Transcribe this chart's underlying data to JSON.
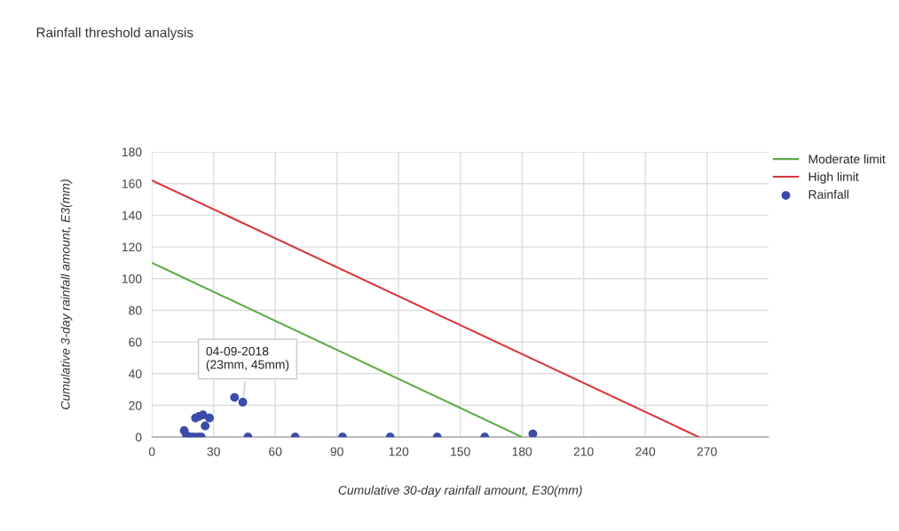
{
  "chart_data": {
    "type": "scatter",
    "title": "Rainfall threshold analysis",
    "xlabel": "Cumulative 30-day rainfall amount, E30(mm)",
    "ylabel": "Cumulative 3-day rainfall amount, E3(mm)",
    "xlim": [
      0,
      300
    ],
    "xticks": [
      0,
      30,
      60,
      90,
      120,
      150,
      180,
      210,
      240,
      270
    ],
    "ylim": [
      0,
      180
    ],
    "yticks": [
      0,
      20,
      40,
      60,
      80,
      100,
      120,
      140,
      160,
      180
    ],
    "grid": true,
    "legend": "top right",
    "series": [
      {
        "name": "Moderate limit",
        "type": "line",
        "color": "#5aac44",
        "x": [
          0,
          180
        ],
        "values": [
          110,
          0
        ]
      },
      {
        "name": "High limit",
        "type": "line",
        "color": "#d9363e",
        "x": [
          0,
          266
        ],
        "values": [
          162,
          0
        ]
      },
      {
        "name": "Rainfall",
        "marker": "circle",
        "color": "#3a4ba8",
        "x": [
          15.7,
          16.8,
          17.6,
          19,
          20.4,
          22.5,
          24,
          21.2,
          22.9,
          24.8,
          28,
          25.9,
          40.2,
          44.2,
          46.7,
          69.7,
          92.7,
          115.9,
          138.8,
          161.9,
          185.3
        ],
        "values": [
          4,
          1,
          0,
          0,
          0,
          0,
          0,
          12,
          13,
          14,
          12,
          7,
          25,
          22,
          0,
          0,
          0,
          0,
          0,
          0,
          2
        ]
      }
    ],
    "annotations": [
      {
        "text": "04-09-2018\n(23mm, 45mm)",
        "x": 44.2,
        "y": 22
      }
    ]
  }
}
